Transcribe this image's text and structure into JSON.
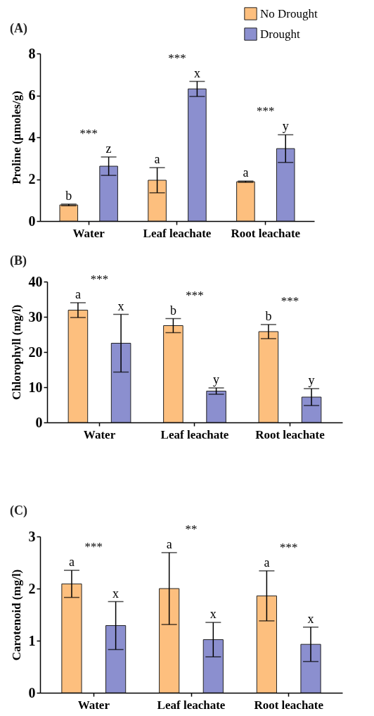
{
  "chart_data": [
    {
      "type": "bar",
      "title": "(A)",
      "ylabel": "Proline (µmoles/g)",
      "categories": [
        "Water",
        "Leaf leachate",
        "Root leachate"
      ],
      "series": [
        {
          "name": "No Drought",
          "color": "#fdbf7e",
          "values": [
            0.77,
            1.95,
            1.88
          ],
          "errors": [
            0.04,
            0.6,
            0.03
          ],
          "value_labels": [
            "b",
            "a",
            "a"
          ]
        },
        {
          "name": "Drought",
          "color": "#8b8fcf",
          "values": [
            2.62,
            6.31,
            3.46
          ],
          "errors": [
            0.44,
            0.36,
            0.66
          ],
          "value_labels": [
            "z",
            "x",
            "y"
          ]
        }
      ],
      "ylim": [
        0,
        8
      ],
      "yticks": [
        0,
        2,
        4,
        6,
        8
      ],
      "legend": "top right",
      "annotations": [
        "***",
        "***",
        "***"
      ]
    },
    {
      "type": "bar",
      "title": "(B)",
      "ylabel": "Chlorophyll (mg/l)",
      "categories": [
        "Water",
        "Leaf leachate",
        "Root leachate"
      ],
      "series": [
        {
          "color": "#fdbf7e",
          "values": [
            31.9,
            27.5,
            25.8
          ],
          "errors": [
            2.1,
            2.0,
            2.0
          ],
          "value_labels": [
            "a",
            "b",
            "b"
          ]
        },
        {
          "color": "#8b8fcf",
          "values": [
            22.5,
            8.9,
            7.2
          ],
          "errors": [
            8.2,
            0.9,
            2.4
          ],
          "value_labels": [
            "x",
            "y",
            "y"
          ]
        }
      ],
      "ylim": [
        0,
        40
      ],
      "yticks": [
        0,
        10,
        20,
        30,
        40
      ],
      "annotations": [
        "***",
        "***",
        "***"
      ]
    },
    {
      "type": "bar",
      "title": "(C)",
      "ylabel": "Carotenoid (mg/l)",
      "categories": [
        "Water",
        "Leaf leachate",
        "Root leachate"
      ],
      "series": [
        {
          "color": "#fdbf7e",
          "values": [
            2.09,
            2.0,
            1.86
          ],
          "errors": [
            0.26,
            0.69,
            0.48
          ],
          "value_labels": [
            "a",
            "a",
            "a"
          ]
        },
        {
          "color": "#8b8fcf",
          "values": [
            1.29,
            1.02,
            0.93
          ],
          "errors": [
            0.46,
            0.33,
            0.33
          ],
          "value_labels": [
            "x",
            "x",
            "x"
          ]
        }
      ],
      "ylim": [
        0,
        3
      ],
      "yticks": [
        0,
        1,
        2,
        3
      ],
      "annotations": [
        "***",
        "**",
        "***"
      ]
    }
  ]
}
